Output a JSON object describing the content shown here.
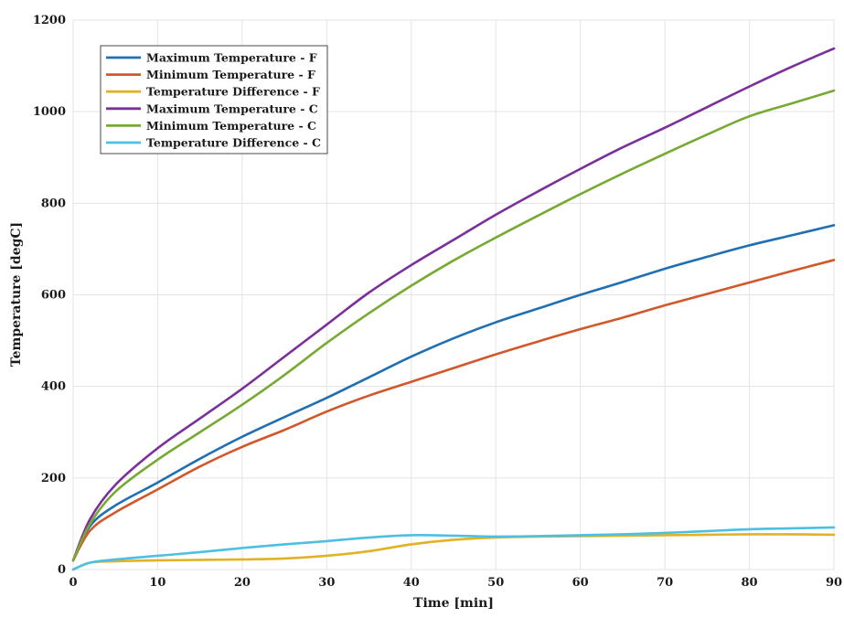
{
  "chart_data": {
    "type": "line",
    "title": "",
    "xlabel": "Time [min]",
    "ylabel": "Temperature [degC]",
    "xlim": [
      0,
      90
    ],
    "ylim": [
      0,
      1200
    ],
    "xticks": [
      0,
      10,
      20,
      30,
      40,
      50,
      60,
      70,
      80,
      90
    ],
    "yticks": [
      0,
      200,
      400,
      600,
      800,
      1000,
      1200
    ],
    "grid": true,
    "legend_position": "top-left",
    "x": [
      0,
      2,
      5,
      10,
      15,
      20,
      25,
      30,
      35,
      40,
      45,
      50,
      55,
      60,
      65,
      70,
      75,
      80,
      85,
      90
    ],
    "series": [
      {
        "name": "Maximum Temperature - F",
        "color": "#1f6fb2",
        "values": [
          20,
          95,
          140,
          190,
          242,
          290,
          333,
          375,
          420,
          465,
          505,
          540,
          570,
          600,
          628,
          657,
          683,
          708,
          730,
          752
        ]
      },
      {
        "name": "Minimum Temperature - F",
        "color": "#d2572a",
        "values": [
          20,
          85,
          125,
          175,
          225,
          268,
          305,
          345,
          380,
          410,
          440,
          470,
          498,
          525,
          550,
          577,
          602,
          627,
          652,
          676
        ]
      },
      {
        "name": "Temperature Difference - F",
        "color": "#e0b224",
        "values": [
          0,
          15,
          18,
          20,
          21,
          22,
          24,
          30,
          40,
          55,
          65,
          70,
          72,
          73,
          74,
          75,
          76,
          77,
          77,
          76
        ]
      },
      {
        "name": "Maximum Temperature - C",
        "color": "#7b2f9b",
        "values": [
          20,
          110,
          185,
          265,
          330,
          395,
          465,
          535,
          605,
          665,
          720,
          775,
          826,
          875,
          922,
          965,
          1010,
          1055,
          1098,
          1138
        ]
      },
      {
        "name": "Minimum Temperature - C",
        "color": "#77aa32",
        "values": [
          20,
          100,
          170,
          240,
          300,
          360,
          425,
          495,
          560,
          620,
          675,
          725,
          773,
          820,
          865,
          908,
          950,
          990,
          1018,
          1046
        ]
      },
      {
        "name": "Temperature Difference - C",
        "color": "#4dbfe3",
        "values": [
          0,
          15,
          22,
          30,
          38,
          47,
          55,
          62,
          70,
          75,
          74,
          72,
          73,
          75,
          77,
          80,
          84,
          88,
          90,
          92
        ]
      }
    ]
  }
}
